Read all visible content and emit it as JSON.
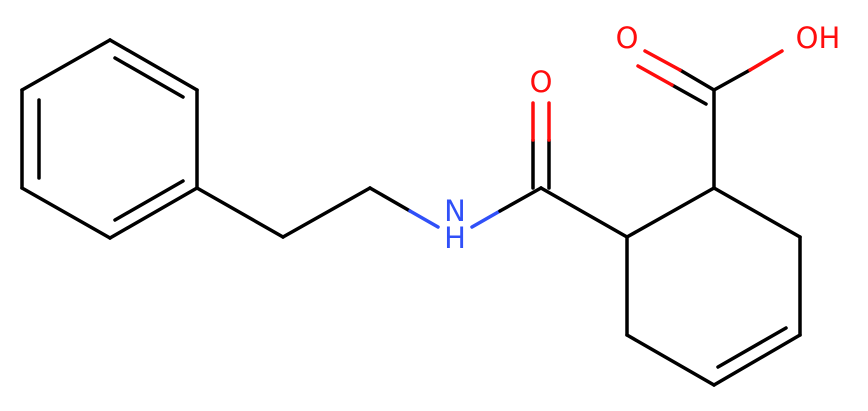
{
  "atoms": {
    "carbonyl_oxygen": "O",
    "acid_oxygen": "O",
    "hydroxyl": "OH",
    "nitrogen": "N",
    "amide_hydrogen": "H"
  }
}
